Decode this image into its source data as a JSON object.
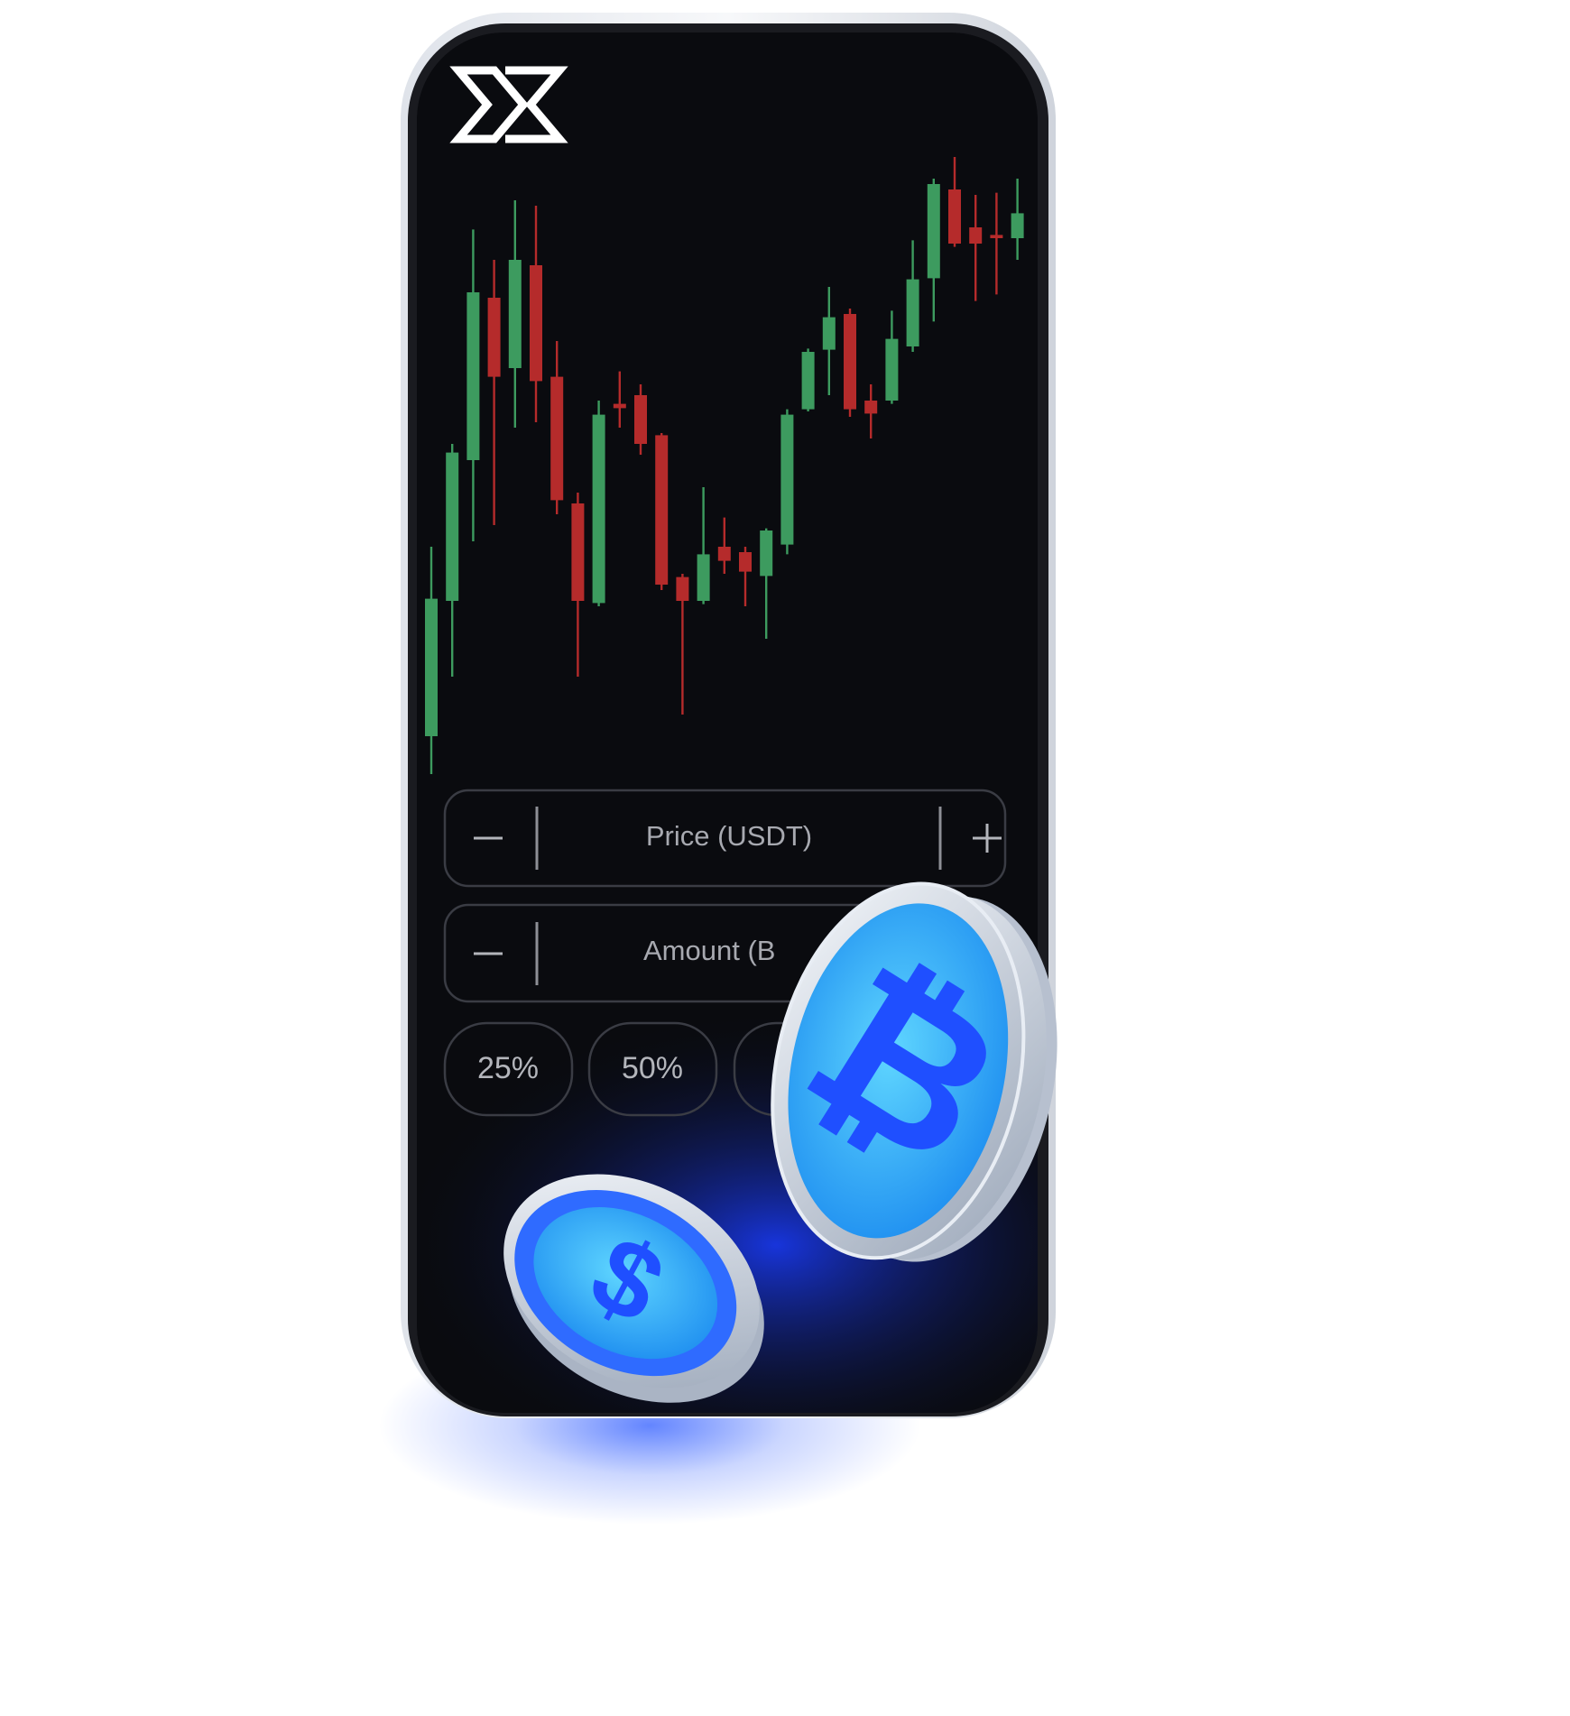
{
  "screen": {
    "price_field": {
      "label": "Price (USDT)"
    },
    "amount_field": {
      "label": "Amount (B"
    },
    "percent_buttons": [
      "25%",
      "50%"
    ]
  },
  "chart_data": {
    "type": "candlestick",
    "categories": [
      null,
      null,
      null,
      null,
      null,
      null,
      null,
      null,
      null,
      null,
      null,
      null,
      null,
      null,
      null,
      null,
      null,
      null,
      null,
      null,
      null,
      null,
      null,
      null,
      null,
      null,
      null,
      null,
      null
    ],
    "open": [
      40,
      165,
      295,
      445,
      380,
      475,
      372,
      255,
      163,
      347,
      355,
      318,
      187,
      165,
      215,
      210,
      188,
      217,
      342,
      397,
      430,
      350,
      350,
      400,
      463,
      545,
      510,
      503,
      500
    ],
    "high": [
      215,
      310,
      508,
      480,
      535,
      530,
      405,
      265,
      350,
      377,
      365,
      320,
      190,
      270,
      242,
      215,
      232,
      342,
      398,
      455,
      435,
      365,
      433,
      498,
      555,
      575,
      540,
      542,
      555
    ],
    "low": [
      5,
      95,
      220,
      235,
      325,
      330,
      245,
      95,
      160,
      325,
      300,
      175,
      60,
      162,
      190,
      160,
      130,
      208,
      340,
      355,
      335,
      315,
      347,
      395,
      423,
      492,
      442,
      448,
      480
    ],
    "close": [
      167,
      302,
      450,
      372,
      480,
      368,
      258,
      165,
      337,
      343,
      310,
      180,
      165,
      208,
      202,
      192,
      230,
      337,
      395,
      427,
      342,
      338,
      407,
      462,
      550,
      495,
      495,
      500,
      523
    ],
    "up_color": "#3d9b5f",
    "down_color": "#b52b2b"
  }
}
